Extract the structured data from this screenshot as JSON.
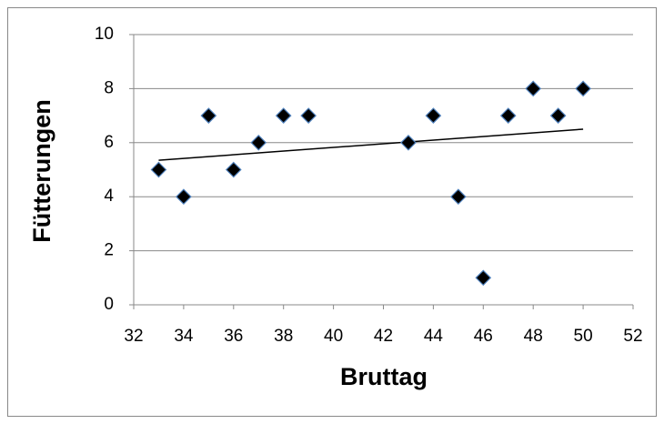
{
  "chart_data": {
    "type": "scatter",
    "x_label": "Bruttag",
    "y_label": "Fütterungen",
    "series": [
      {
        "color": "#000000",
        "x": [
          33,
          34,
          35,
          36,
          37,
          38,
          39,
          43,
          44,
          45,
          46,
          47,
          48,
          49,
          50
        ],
        "values": [
          5,
          4,
          7,
          5,
          6,
          7,
          7,
          6,
          7,
          4,
          1,
          7,
          8,
          7,
          8
        ]
      }
    ],
    "trendline": {
      "x": [
        33,
        50
      ],
      "values": [
        5.35,
        6.5
      ]
    },
    "xlim": [
      32,
      52
    ],
    "xticks": [
      32,
      34,
      36,
      38,
      40,
      42,
      44,
      46,
      48,
      50,
      52
    ],
    "ylim": [
      0,
      10
    ],
    "yticks": [
      0,
      2,
      4,
      6,
      8,
      10
    ],
    "grid": true
  }
}
